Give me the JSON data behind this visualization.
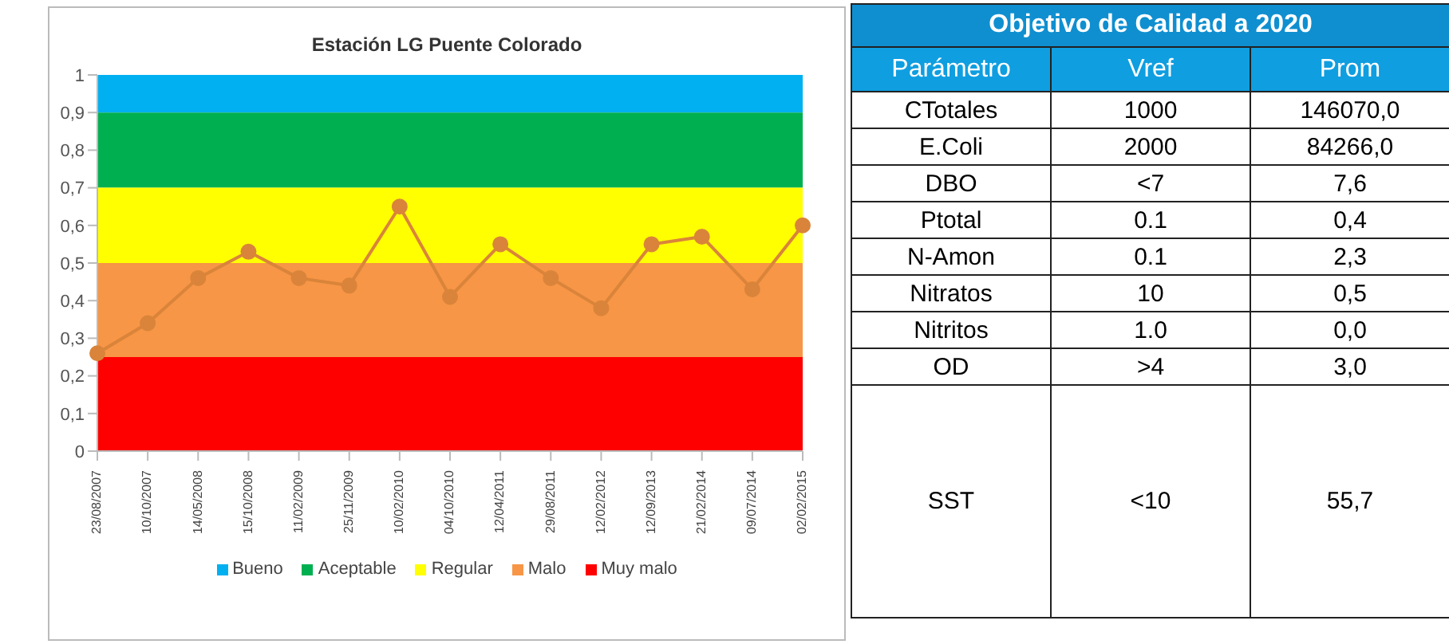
{
  "chart_data": [
    {
      "type": "line",
      "title": "Estación LG Puente Colorado",
      "categories": [
        "23/08/2007",
        "10/10/2007",
        "14/05/2008",
        "15/10/2008",
        "11/02/2009",
        "25/11/2009",
        "10/02/2010",
        "04/10/2010",
        "12/04/2011",
        "29/08/2011",
        "12/02/2012",
        "12/09/2013",
        "21/02/2014",
        "09/07/2014",
        "02/02/2015"
      ],
      "series": [
        {
          "color": "#d9843a",
          "values": [
            0.26,
            0.34,
            0.46,
            0.53,
            0.46,
            0.44,
            0.65,
            0.41,
            0.55,
            0.46,
            0.38,
            0.55,
            0.57,
            0.43,
            0.6
          ]
        }
      ],
      "ylim": [
        0,
        1
      ],
      "yticks": [
        0,
        {
          "value": 0.1,
          "label": "0,1"
        },
        {
          "value": 0.2,
          "label": "0,2"
        },
        {
          "value": 0.3,
          "label": "0,3"
        },
        {
          "value": 0.4,
          "label": "0,4"
        },
        {
          "value": 0.5,
          "label": "0,5"
        },
        {
          "value": 0.6,
          "label": "0,6"
        },
        {
          "value": 0.7,
          "label": "0,7"
        },
        {
          "value": 0.8,
          "label": "0,8"
        },
        {
          "value": 0.9,
          "label": "0,9"
        },
        1
      ],
      "bands": [
        {
          "axis": "y",
          "from": 0.9,
          "to": 1,
          "label": "Bueno",
          "color": "#00b0f0"
        },
        {
          "axis": "y",
          "from": 0.7,
          "to": 0.9,
          "label": "Aceptable",
          "color": "#00b050"
        },
        {
          "axis": "y",
          "from": 0.5,
          "to": 0.7,
          "label": "Regular",
          "color": "#ffff00"
        },
        {
          "axis": "y",
          "from": 0.25,
          "to": 0.5,
          "label": "Malo",
          "color": "#f79646"
        },
        {
          "axis": "y",
          "from": 0,
          "to": 0.25,
          "label": "Muy malo",
          "color": "#ff0000"
        }
      ],
      "marker": "circle",
      "grid": false,
      "legend": "bottom"
    },
    {
      "type": "other",
      "title": "Objetivo de Calidad a 2020",
      "annotations": [
        "Parámetro",
        "Vref",
        "Prom",
        "CTotales",
        "1000",
        "146070,0",
        "E.Coli",
        "2000",
        "84266,0",
        "DBO",
        "<7",
        "7,6",
        "Ptotal",
        "0.1",
        "0,4",
        "N-Amon",
        "0.1",
        "2,3",
        "Nitratos",
        "10",
        "0,5",
        "Nitritos",
        "1.0",
        "0,0",
        "OD",
        ">4",
        "3,0",
        "SST",
        "<10",
        "55,7"
      ]
    }
  ]
}
